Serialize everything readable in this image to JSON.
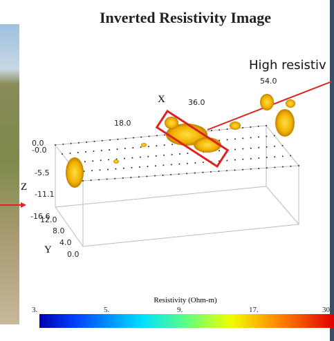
{
  "title": "Inverted Resistivity Image",
  "annotation": "High resistiv",
  "plot": {
    "x_axis": {
      "label": "X",
      "ticks": [
        "18.0",
        "36.0",
        "54.0"
      ]
    },
    "y_axis": {
      "label": "Y",
      "ticks": [
        "12.0",
        "8.0",
        "4.0",
        "0.0"
      ]
    },
    "z_axis": {
      "label": "Z",
      "ticks": [
        "0.0",
        "-0.0",
        "-5.5",
        "-11.1",
        "-16.6"
      ]
    }
  },
  "colorbar": {
    "label": "Resistivity (Ohm-m)",
    "ticks": [
      "3.",
      "5.",
      "9.",
      "17.",
      "30"
    ]
  }
}
